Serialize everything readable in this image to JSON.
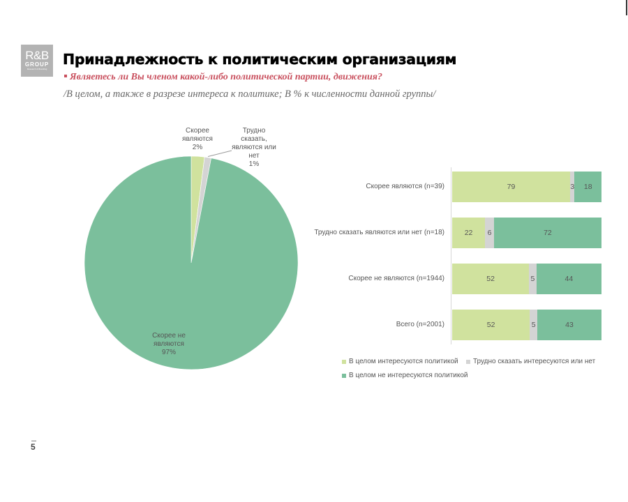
{
  "logo": {
    "line1": "R&B",
    "line2": "GROUP",
    "line3": "Research & Branding"
  },
  "header": {
    "title": "Принадлежность к политическим организациям",
    "question": "Являетесь ли Вы членом какой-либо политической партии, движения?",
    "subtitle": "/В целом, а также в разрезе интереса к политике; В % к численности данной группы/"
  },
  "colors": {
    "light_green": "#d0e29e",
    "gray": "#d4d4d4",
    "teal_green": "#7bbf9c",
    "question_red": "#c9505e"
  },
  "page": {
    "number": "5"
  },
  "chart_data": [
    {
      "type": "pie",
      "title": "",
      "labels": [
        "Скорее являются",
        "Трудно сказать, являются или нет",
        "Скорее не являются"
      ],
      "values": [
        2,
        1,
        97
      ],
      "colors": [
        "#d0e29e",
        "#d4d4d4",
        "#7bbf9c"
      ],
      "data_labels": [
        {
          "name": "Скорее являются",
          "pct": "2%"
        },
        {
          "name": "Трудно сказать, являются или нет",
          "pct": "1%"
        },
        {
          "name": "Скорее не являются",
          "pct": "97%"
        }
      ]
    },
    {
      "type": "bar",
      "orientation": "horizontal",
      "stacked": "100%",
      "categories": [
        "Скорее являются (n=39)",
        "Трудно сказать являются или нет (n=18)",
        "Скорее не являются (n=1944)",
        "Всего (n=2001)"
      ],
      "series": [
        {
          "name": "В целом интересуются политикой",
          "color": "#d0e29e",
          "values": [
            79,
            22,
            52,
            52
          ]
        },
        {
          "name": "Трудно сказать интересуются или нет",
          "color": "#d4d4d4",
          "values": [
            3,
            6,
            5,
            5
          ]
        },
        {
          "name": "В целом не интересуются политикой",
          "color": "#7bbf9c",
          "values": [
            18,
            72,
            44,
            43
          ]
        }
      ],
      "xlim": [
        0,
        100
      ],
      "grid": false,
      "legend_position": "bottom"
    }
  ]
}
